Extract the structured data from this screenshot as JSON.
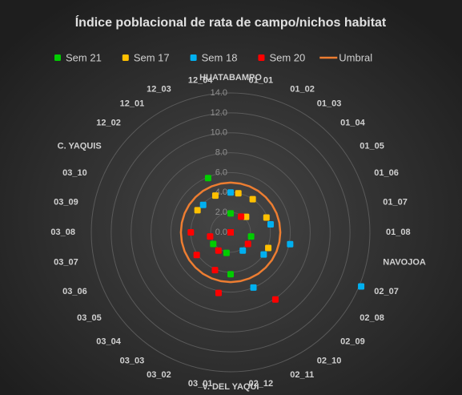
{
  "chart_data": {
    "type": "radar",
    "title": "Índice poblacional de rata de campo/nichos habitat",
    "categories": [
      "HUATABAMPO",
      "01_01",
      "01_02",
      "01_03",
      "01_04",
      "01_05",
      "01_06",
      "01_07",
      "01_08",
      "NAVOJOA",
      "02_07",
      "02_08",
      "02_09",
      "02_10",
      "02_11",
      "02_12",
      "V. DEL YAQUI",
      "03_01",
      "03_02",
      "03_03",
      "03_04",
      "03_05",
      "03_06",
      "03_07",
      "03_08",
      "03_09",
      "03_10",
      "C. YAQUIS",
      "12_02",
      "12_01",
      "12_03",
      "12_04"
    ],
    "ylim": [
      0,
      14
    ],
    "yticks": [
      {
        "value": 0,
        "label": "0.0"
      },
      {
        "value": 2,
        "label": "2.0"
      },
      {
        "value": 4,
        "label": "4.0"
      },
      {
        "value": 6,
        "label": "6.0"
      },
      {
        "value": 8,
        "label": "8.0"
      },
      {
        "value": 10,
        "label": "10.0"
      },
      {
        "value": 12,
        "label": "12.0"
      },
      {
        "value": 14,
        "label": "14.0"
      }
    ],
    "grid": true,
    "legend": "top",
    "series": [
      {
        "name": "Sem 21",
        "color": "#00cc00",
        "values": [
          1.9,
          0,
          0,
          0,
          0,
          0,
          0,
          0,
          0,
          2.1,
          0,
          0,
          0,
          0,
          0,
          0,
          4.2,
          2.1,
          0,
          0,
          0,
          2.1,
          0,
          0,
          0,
          0,
          0,
          0,
          0,
          0,
          5.9,
          0
        ]
      },
      {
        "name": "Sem 17",
        "color": "#ffc000",
        "values": [
          0,
          4.0,
          0,
          4.0,
          2.2,
          0,
          3.9,
          0,
          0,
          0,
          4.1,
          0,
          0,
          0,
          0,
          0,
          0,
          0,
          0,
          0,
          0,
          0,
          0,
          0,
          0,
          0,
          0,
          4.0,
          0,
          0,
          4.0,
          0
        ]
      },
      {
        "name": "Sem 18",
        "color": "#00b0f0",
        "values": [
          4.0,
          0,
          0,
          0,
          0,
          0,
          0,
          4.1,
          0,
          6.1,
          14.2,
          4.0,
          0,
          2.2,
          6.0,
          0,
          0,
          0,
          0,
          0,
          0,
          0,
          0,
          0,
          0,
          0,
          0,
          0,
          3.9,
          0,
          0,
          0
        ]
      },
      {
        "name": "Sem 20",
        "color": "#ff0000",
        "values": [
          0,
          0,
          0,
          1.9,
          0,
          0,
          0,
          0,
          0,
          0,
          0,
          2.1,
          0,
          8.1,
          0,
          0,
          0,
          6.2,
          4.1,
          2.2,
          0,
          4.1,
          0,
          2.1,
          4.0,
          0,
          0,
          0,
          0,
          0,
          0,
          0
        ]
      },
      {
        "name": "Umbral",
        "color": "#ed7d31",
        "line": true,
        "values": [
          5,
          5,
          5,
          5,
          5,
          5,
          5,
          5,
          5,
          5,
          5,
          5,
          5,
          5,
          5,
          5,
          5,
          5,
          5,
          5,
          5,
          5,
          5,
          5,
          5,
          5,
          5,
          5,
          5,
          5,
          5,
          5
        ]
      }
    ]
  }
}
